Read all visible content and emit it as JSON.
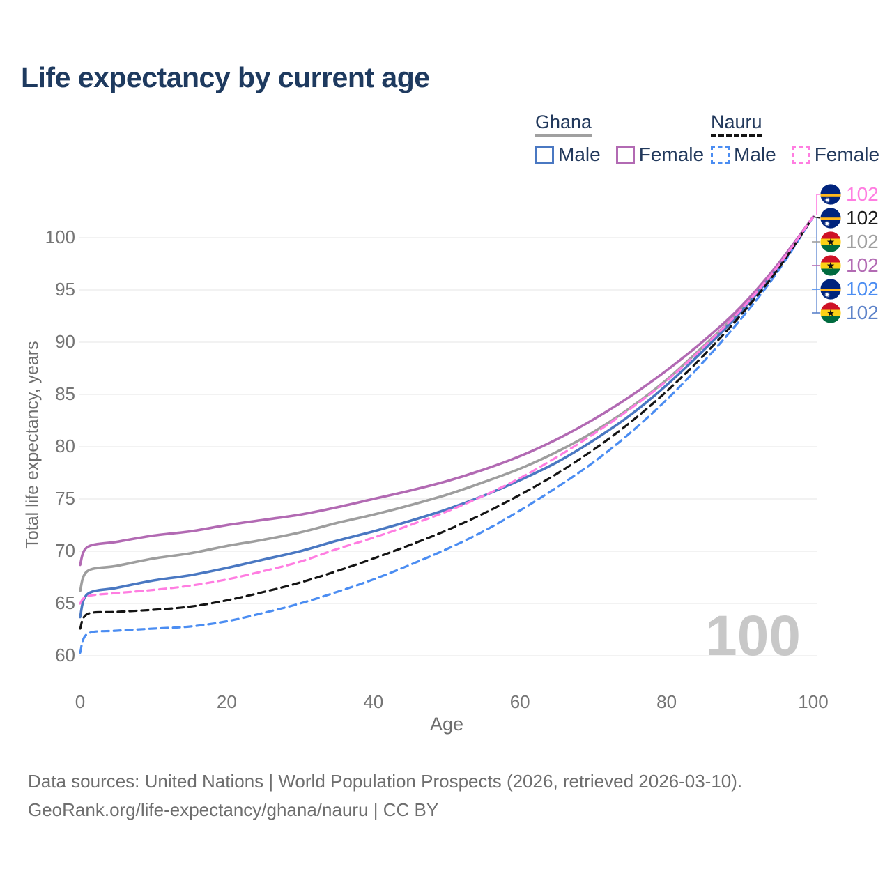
{
  "title": "Life expectancy by current age",
  "legend": {
    "groups": [
      {
        "country": "Ghana",
        "underline_color": "#a0a0a0",
        "underline_style": "solid",
        "items": [
          {
            "label": "Male",
            "color": "#4a78c2",
            "dash": "solid"
          },
          {
            "label": "Female",
            "color": "#b26ab3",
            "dash": "solid"
          }
        ]
      },
      {
        "country": "Nauru",
        "underline_color": "#141414",
        "underline_style": "dashed",
        "items": [
          {
            "label": "Male",
            "color": "#4b8df2",
            "dash": "dashed"
          },
          {
            "label": "Female",
            "color": "#ff7de1",
            "dash": "dashed"
          }
        ]
      }
    ]
  },
  "chart_data": {
    "type": "line",
    "title": "Life expectancy by current age",
    "xlabel": "Age",
    "ylabel": "Total life expectancy, years",
    "xlim": [
      0,
      100
    ],
    "ylim": [
      58.5,
      103.5
    ],
    "xticks": [
      0,
      20,
      40,
      60,
      80,
      100
    ],
    "yticks": [
      60,
      65,
      70,
      75,
      80,
      85,
      90,
      95,
      100
    ],
    "grid": "horizontal-only",
    "x": [
      0,
      1,
      5,
      10,
      15,
      20,
      25,
      30,
      35,
      40,
      45,
      50,
      55,
      60,
      65,
      70,
      75,
      80,
      85,
      90,
      95,
      100
    ],
    "series": [
      {
        "name": "Ghana",
        "country": "Ghana",
        "sex": "All",
        "color": "#9e9e9e",
        "dash": "solid",
        "values": [
          66.2,
          68.1,
          68.6,
          69.3,
          69.8,
          70.5,
          71.1,
          71.8,
          72.7,
          73.5,
          74.4,
          75.4,
          76.6,
          77.9,
          79.5,
          81.4,
          83.7,
          86.4,
          89.6,
          93.0,
          97.1,
          102
        ]
      },
      {
        "name": "Ghana Male",
        "country": "Ghana",
        "sex": "Male",
        "color": "#4a78c2",
        "dash": "solid",
        "values": [
          63.7,
          65.9,
          66.5,
          67.2,
          67.7,
          68.4,
          69.2,
          70.0,
          71.0,
          71.9,
          72.9,
          74.0,
          75.3,
          76.8,
          78.5,
          80.6,
          83.0,
          85.9,
          89.2,
          92.8,
          97.0,
          102
        ]
      },
      {
        "name": "Ghana Female",
        "country": "Ghana",
        "sex": "Female",
        "color": "#b26ab3",
        "dash": "solid",
        "values": [
          68.7,
          70.4,
          70.9,
          71.5,
          71.9,
          72.5,
          73.0,
          73.5,
          74.2,
          75.0,
          75.8,
          76.7,
          77.8,
          79.1,
          80.7,
          82.6,
          84.8,
          87.3,
          90.1,
          93.3,
          97.3,
          102
        ]
      },
      {
        "name": "Nauru Male",
        "country": "Nauru",
        "sex": "Male",
        "color": "#4b8df2",
        "dash": "dashed",
        "values": [
          60.3,
          62.1,
          62.4,
          62.6,
          62.8,
          63.3,
          64.1,
          65.0,
          66.1,
          67.3,
          68.7,
          70.2,
          71.9,
          73.9,
          76.1,
          78.5,
          81.3,
          84.5,
          88.1,
          92.1,
          96.6,
          102
        ]
      },
      {
        "name": "Nauru",
        "country": "Nauru",
        "sex": "All",
        "color": "#141414",
        "dash": "dashed",
        "values": [
          62.6,
          64.0,
          64.2,
          64.4,
          64.7,
          65.3,
          66.1,
          67.0,
          68.1,
          69.3,
          70.6,
          72.0,
          73.6,
          75.4,
          77.4,
          79.7,
          82.3,
          85.3,
          88.7,
          92.5,
          96.8,
          102
        ]
      },
      {
        "name": "Nauru Female",
        "country": "Nauru",
        "sex": "Female",
        "color": "#ff7de1",
        "dash": "dashed",
        "values": [
          65.0,
          65.7,
          66.0,
          66.3,
          66.7,
          67.3,
          68.1,
          69.0,
          70.2,
          71.3,
          72.5,
          73.8,
          75.3,
          77.0,
          79.0,
          81.2,
          83.6,
          86.3,
          89.5,
          93.0,
          97.1,
          102
        ]
      }
    ],
    "end_labels": [
      {
        "flag": "nauru",
        "series": "Nauru Female",
        "value": "102",
        "color": "#ff7de1"
      },
      {
        "flag": "nauru",
        "series": "Nauru",
        "value": "102",
        "color": "#1a1a1a"
      },
      {
        "flag": "ghana",
        "series": "Ghana",
        "value": "102",
        "color": "#9e9e9e"
      },
      {
        "flag": "ghana",
        "series": "Ghana Female",
        "value": "102",
        "color": "#b26ab3"
      },
      {
        "flag": "nauru",
        "series": "Nauru Male",
        "value": "102",
        "color": "#4b8df2"
      },
      {
        "flag": "ghana",
        "series": "Ghana Male",
        "value": "102",
        "color": "#5c82c9"
      }
    ],
    "age_indicator": "100"
  },
  "footer": {
    "line1": "Data sources: United Nations | World Population Prospects (2026, retrieved 2026-03-10).",
    "line2": "GeoRank.org/life-expectancy/ghana/nauru | CC BY"
  }
}
